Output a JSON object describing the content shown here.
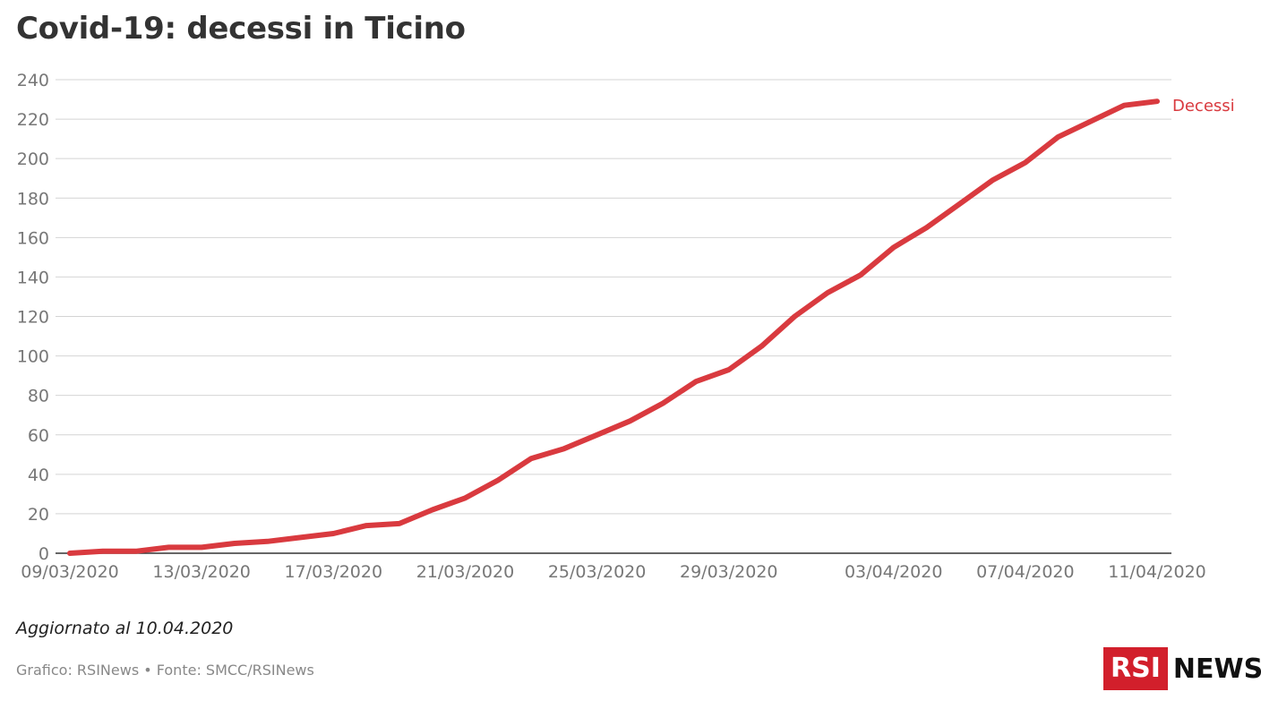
{
  "title": "Covid-19: decessi in Ticino",
  "updated": "Aggiornato al 10.04.2020",
  "credits": "Grafico: RSINews • Fonte: SMCC/RSINews",
  "logo": {
    "rsi": "RSI",
    "news": "NEWS",
    "color": "#d21f2b"
  },
  "chart_data": {
    "type": "line",
    "title": "Covid-19: decessi in Ticino",
    "xlabel": "",
    "ylabel": "",
    "ylim": [
      0,
      240
    ],
    "yticks": [
      0,
      20,
      40,
      60,
      80,
      100,
      120,
      140,
      160,
      180,
      200,
      220,
      240
    ],
    "grid": true,
    "legend": "end-of-line label",
    "x_tick_labels": [
      "09/03/2020",
      "13/03/2020",
      "17/03/2020",
      "21/03/2020",
      "25/03/2020",
      "29/03/2020",
      "03/04/2020",
      "07/04/2020",
      "11/04/2020"
    ],
    "x": [
      "09/03/2020",
      "10/03/2020",
      "11/03/2020",
      "12/03/2020",
      "13/03/2020",
      "14/03/2020",
      "15/03/2020",
      "16/03/2020",
      "17/03/2020",
      "18/03/2020",
      "19/03/2020",
      "20/03/2020",
      "21/03/2020",
      "22/03/2020",
      "23/03/2020",
      "24/03/2020",
      "25/03/2020",
      "26/03/2020",
      "27/03/2020",
      "28/03/2020",
      "29/03/2020",
      "30/03/2020",
      "31/03/2020",
      "01/04/2020",
      "02/04/2020",
      "03/04/2020",
      "04/04/2020",
      "05/04/2020",
      "06/04/2020",
      "07/04/2020",
      "08/04/2020",
      "09/04/2020",
      "10/04/2020",
      "11/04/2020"
    ],
    "series": [
      {
        "name": "Decessi",
        "color": "#d93a3f",
        "values": [
          0,
          1,
          1,
          3,
          3,
          5,
          6,
          8,
          10,
          14,
          15,
          22,
          28,
          37,
          48,
          53,
          60,
          67,
          76,
          87,
          93,
          105,
          120,
          132,
          141,
          155,
          165,
          177,
          189,
          198,
          211,
          219,
          227,
          229
        ]
      }
    ]
  }
}
